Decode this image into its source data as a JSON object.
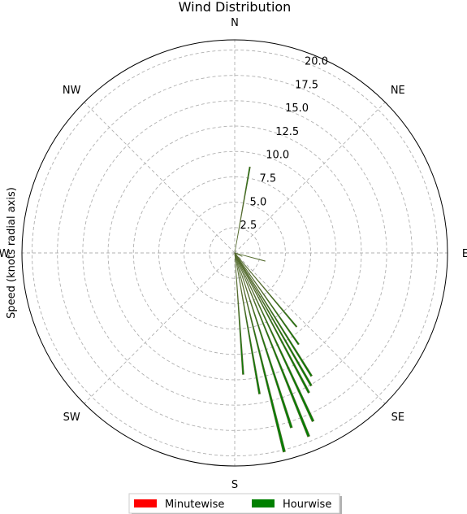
{
  "chart_data": {
    "type": "polar-bar",
    "title": "Wind Distribution",
    "ylabel": "Speed (knots radial axis)",
    "directions": [
      "N",
      "NE",
      "E",
      "SE",
      "S",
      "SW",
      "W",
      "NW"
    ],
    "radial_ticks": [
      "2.5",
      "5.0",
      "7.5",
      "10.0",
      "12.5",
      "15.0",
      "17.5",
      "20.0"
    ],
    "rlim": [
      0,
      21
    ],
    "grid": true,
    "legend_position": "bottom-center",
    "series": [
      {
        "name": "Minutewise",
        "color": "#ff0000",
        "bars": []
      },
      {
        "name": "Hourwise",
        "color": "#008000",
        "bars": [
          {
            "direction_deg": 10.0,
            "speed": 8.6
          },
          {
            "direction_deg": 105.0,
            "speed": 3.1
          },
          {
            "direction_deg": 115.0,
            "speed": 0.8
          },
          {
            "direction_deg": 148.0,
            "speed": 14.3
          },
          {
            "direction_deg": 150.0,
            "speed": 15.1
          },
          {
            "direction_deg": 152.0,
            "speed": 15.6
          },
          {
            "direction_deg": 155.0,
            "speed": 18.3
          },
          {
            "direction_deg": 158.0,
            "speed": 19.5
          },
          {
            "direction_deg": 162.0,
            "speed": 18.1
          },
          {
            "direction_deg": 166.0,
            "speed": 20.2
          },
          {
            "direction_deg": 170.0,
            "speed": 14.1
          },
          {
            "direction_deg": 176.0,
            "speed": 12.0
          },
          {
            "direction_deg": 145.0,
            "speed": 11.0
          },
          {
            "direction_deg": 140.0,
            "speed": 9.5
          }
        ]
      }
    ]
  }
}
